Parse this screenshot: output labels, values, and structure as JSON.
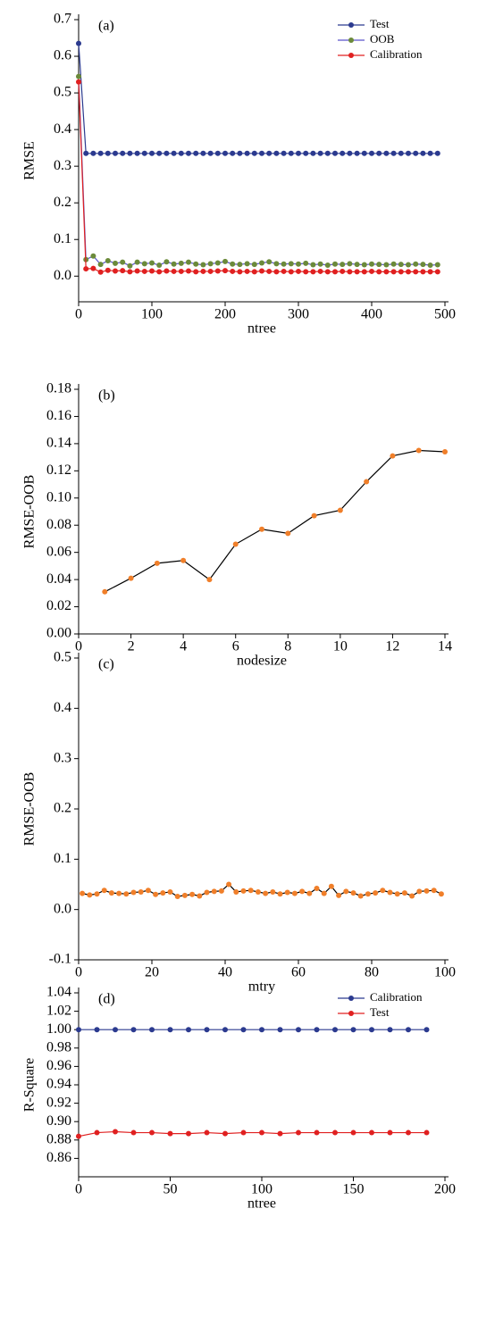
{
  "chart_data": [
    {
      "type": "line",
      "title": "(a)",
      "xlabel": "ntree",
      "ylabel": "RMSE",
      "x": [
        0,
        10,
        20,
        30,
        40,
        50,
        60,
        70,
        80,
        90,
        100,
        110,
        120,
        130,
        140,
        150,
        160,
        170,
        180,
        190,
        200,
        210,
        220,
        230,
        240,
        250,
        260,
        270,
        280,
        290,
        300,
        310,
        320,
        330,
        340,
        350,
        360,
        370,
        380,
        390,
        400,
        410,
        420,
        430,
        440,
        450,
        460,
        470,
        480,
        490
      ],
      "series": [
        {
          "name": "Test",
          "color": "#2b3a8f",
          "marker_color": "#2b3a8f",
          "values": [
            0.635,
            0.335,
            0.335,
            0.335,
            0.335,
            0.335,
            0.335,
            0.335,
            0.335,
            0.335,
            0.335,
            0.335,
            0.335,
            0.335,
            0.335,
            0.335,
            0.335,
            0.335,
            0.335,
            0.335,
            0.335,
            0.335,
            0.335,
            0.335,
            0.335,
            0.335,
            0.335,
            0.335,
            0.335,
            0.335,
            0.335,
            0.335,
            0.335,
            0.335,
            0.335,
            0.335,
            0.335,
            0.335,
            0.335,
            0.335,
            0.335,
            0.335,
            0.335,
            0.335,
            0.335,
            0.335,
            0.335,
            0.335,
            0.335,
            0.335
          ]
        },
        {
          "name": "OOB",
          "color": "#5b55c9",
          "marker_color": "#6b8a3a",
          "values": [
            0.545,
            0.045,
            0.055,
            0.032,
            0.042,
            0.035,
            0.038,
            0.028,
            0.038,
            0.034,
            0.036,
            0.03,
            0.039,
            0.033,
            0.035,
            0.038,
            0.033,
            0.031,
            0.034,
            0.036,
            0.04,
            0.033,
            0.032,
            0.034,
            0.032,
            0.036,
            0.039,
            0.034,
            0.033,
            0.034,
            0.033,
            0.035,
            0.031,
            0.033,
            0.03,
            0.033,
            0.032,
            0.034,
            0.032,
            0.031,
            0.033,
            0.032,
            0.031,
            0.033,
            0.032,
            0.031,
            0.033,
            0.032,
            0.03,
            0.031
          ]
        },
        {
          "name": "Calibration",
          "color": "#e02020",
          "marker_color": "#e02020",
          "values": [
            0.53,
            0.02,
            0.021,
            0.011,
            0.016,
            0.014,
            0.015,
            0.012,
            0.014,
            0.013,
            0.014,
            0.012,
            0.014,
            0.013,
            0.013,
            0.014,
            0.012,
            0.013,
            0.013,
            0.014,
            0.015,
            0.013,
            0.012,
            0.013,
            0.012,
            0.014,
            0.013,
            0.012,
            0.013,
            0.012,
            0.013,
            0.012,
            0.012,
            0.013,
            0.012,
            0.012,
            0.013,
            0.012,
            0.012,
            0.012,
            0.013,
            0.012,
            0.012,
            0.012,
            0.012,
            0.012,
            0.012,
            0.012,
            0.012,
            0.012
          ]
        }
      ],
      "xlim": [
        0,
        500
      ],
      "xticks": [
        0,
        100,
        200,
        300,
        400,
        500
      ],
      "ylim": [
        -0.07,
        0.7
      ],
      "yticks": [
        {
          "value": 0,
          "label": "0.0"
        },
        0.1,
        0.2,
        0.3,
        0.4,
        0.5,
        0.6,
        0.7
      ],
      "legend": "upper right"
    },
    {
      "type": "line",
      "title": "(b)",
      "xlabel": "nodesize",
      "ylabel": "RMSE-OOB",
      "x": [
        1,
        2,
        3,
        4,
        5,
        6,
        7,
        8,
        9,
        10,
        11,
        12,
        13,
        14
      ],
      "values": [
        0.031,
        0.041,
        0.052,
        0.054,
        0.04,
        0.066,
        0.077,
        0.074,
        0.087,
        0.091,
        0.112,
        0.131,
        0.135,
        0.134
      ],
      "color": "#000000",
      "marker_color": "#f07f2a",
      "xlim": [
        0,
        14
      ],
      "xticks": [
        0,
        2,
        4,
        6,
        8,
        10,
        12,
        14
      ],
      "ylim": [
        0,
        0.18
      ],
      "yticks": [
        {
          "value": 0,
          "label": "0.00"
        },
        0.02,
        0.04,
        0.06,
        0.08,
        {
          "value": 0.1,
          "label": "0.10"
        },
        0.12,
        0.14,
        0.16,
        0.18
      ]
    },
    {
      "type": "line",
      "title": "(c)",
      "xlabel": "mtry",
      "ylabel": "RMSE-OOB",
      "x": [
        1,
        3,
        5,
        7,
        9,
        11,
        13,
        15,
        17,
        19,
        21,
        23,
        25,
        27,
        29,
        31,
        33,
        35,
        37,
        39,
        41,
        43,
        45,
        47,
        49,
        51,
        53,
        55,
        57,
        59,
        61,
        63,
        65,
        67,
        69,
        71,
        73,
        75,
        77,
        79,
        81,
        83,
        85,
        87,
        89,
        91,
        93,
        95,
        97,
        99
      ],
      "values": [
        0.032,
        0.029,
        0.031,
        0.038,
        0.033,
        0.032,
        0.031,
        0.034,
        0.035,
        0.038,
        0.03,
        0.033,
        0.035,
        0.026,
        0.028,
        0.03,
        0.027,
        0.034,
        0.036,
        0.037,
        0.05,
        0.035,
        0.037,
        0.038,
        0.035,
        0.032,
        0.035,
        0.031,
        0.034,
        0.032,
        0.036,
        0.032,
        0.042,
        0.032,
        0.046,
        0.028,
        0.036,
        0.033,
        0.027,
        0.031,
        0.033,
        0.038,
        0.034,
        0.031,
        0.033,
        0.027,
        0.036,
        0.037,
        0.038,
        0.031
      ],
      "color": "#000000",
      "marker_color": "#f07f2a",
      "xlim": [
        0,
        100
      ],
      "xticks": [
        0,
        20,
        40,
        60,
        80,
        100
      ],
      "ylim": [
        -0.1,
        0.5
      ],
      "yticks": [
        -0.1,
        {
          "value": 0,
          "label": "0.0"
        },
        0.1,
        0.2,
        0.3,
        0.4,
        0.5
      ]
    },
    {
      "type": "line",
      "title": "(d)",
      "xlabel": "ntree",
      "ylabel": "R-Square",
      "x": [
        0,
        10,
        20,
        30,
        40,
        50,
        60,
        70,
        80,
        90,
        100,
        110,
        120,
        130,
        140,
        150,
        160,
        170,
        180,
        190
      ],
      "series": [
        {
          "name": "Calibration",
          "color": "#2b3a8f",
          "marker_color": "#2b3a8f",
          "values": [
            1.0,
            1.0,
            1.0,
            1.0,
            1.0,
            1.0,
            1.0,
            1.0,
            1.0,
            1.0,
            1.0,
            1.0,
            1.0,
            1.0,
            1.0,
            1.0,
            1.0,
            1.0,
            1.0,
            1.0
          ]
        },
        {
          "name": "Test",
          "color": "#e02020",
          "marker_color": "#e02020",
          "values": [
            0.884,
            0.888,
            0.889,
            0.888,
            0.888,
            0.887,
            0.887,
            0.888,
            0.887,
            0.888,
            0.888,
            0.887,
            0.888,
            0.888,
            0.888,
            0.888,
            0.888,
            0.888,
            0.888,
            0.888
          ]
        }
      ],
      "xlim": [
        0,
        200
      ],
      "xticks": [
        0,
        50,
        100,
        150,
        200
      ],
      "ylim": [
        0.84,
        1.04
      ],
      "yticks": [
        0.86,
        0.88,
        {
          "value": 0.9,
          "label": "0.90"
        },
        0.92,
        0.94,
        0.96,
        0.98,
        {
          "value": 1,
          "label": "1.00"
        },
        1.02,
        1.04
      ],
      "legend": "upper right"
    }
  ]
}
